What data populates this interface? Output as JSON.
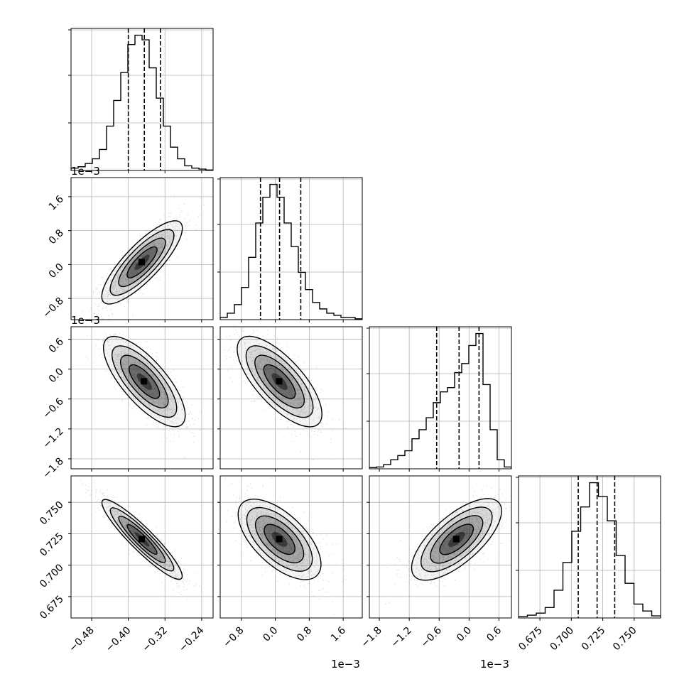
{
  "chart_data": {
    "type": "corner",
    "params": [
      {
        "id": "p0",
        "ticks": [
          -0.48,
          -0.4,
          -0.32,
          -0.24
        ],
        "tick_labels": [
          "−0.48",
          "−0.40",
          "−0.32",
          "−0.24"
        ],
        "offset_label": "",
        "range": [
          -0.525,
          -0.215
        ]
      },
      {
        "id": "p1",
        "ticks": [
          -0.8,
          0.0,
          0.8,
          1.6
        ],
        "tick_labels": [
          "−0.8",
          "0.0",
          "0.8",
          "1.6"
        ],
        "offset_label": "1e−3",
        "range": [
          -1.3,
          2.05
        ]
      },
      {
        "id": "p2",
        "ticks": [
          -1.8,
          -1.2,
          -0.6,
          0.0,
          0.6
        ],
        "tick_labels": [
          "−1.8",
          "−1.2",
          "−0.6",
          "0.0",
          "0.6"
        ],
        "offset_label": "1e−3",
        "range": [
          -2.0,
          0.85
        ]
      },
      {
        "id": "p3",
        "ticks": [
          0.675,
          0.7,
          0.725,
          0.75
        ],
        "tick_labels": [
          "0.675",
          "0.700",
          "0.725",
          "0.750"
        ],
        "offset_label": "",
        "range": [
          0.658,
          0.771
        ]
      }
    ],
    "quantiles": [
      [
        -0.4,
        -0.365,
        -0.33
      ],
      [
        -0.35,
        0.1,
        0.6
      ],
      [
        -0.65,
        -0.2,
        0.2
      ],
      [
        0.7055,
        0.7205,
        0.7345
      ]
    ],
    "histograms": [
      [
        0.5,
        0.8,
        1.5,
        2.5,
        4.5,
        9.5,
        15.0,
        21.0,
        27.0,
        29.0,
        28.0,
        22.0,
        15.5,
        9.5,
        5.0,
        2.5,
        1.0,
        0.5,
        0.3,
        0.1
      ],
      [
        0.5,
        1.5,
        3.5,
        7.5,
        14.5,
        22.5,
        28.5,
        31.5,
        28.5,
        22.5,
        17.0,
        11.0,
        7.0,
        4.0,
        2.5,
        1.5,
        1.0,
        0.5,
        0.5,
        0.2
      ],
      [
        0.2,
        0.3,
        0.7,
        1.5,
        2.2,
        3.0,
        5.0,
        6.5,
        8.5,
        11.0,
        12.8,
        13.5,
        16.0,
        17.5,
        20.5,
        22.5,
        14.0,
        6.5,
        1.5,
        0.3
      ],
      [
        0.2,
        0.4,
        0.7,
        1.5,
        4.0,
        8.0,
        12.5,
        16.0,
        19.5,
        17.5,
        14.0,
        9.0,
        5.0,
        2.0,
        1.0,
        0.3
      ]
    ],
    "pairs": [
      {
        "row": 1,
        "col": 0,
        "mean": [
          -0.37,
          0.05
        ],
        "sd": [
          0.04,
          0.45
        ],
        "rho": 0.82
      },
      {
        "row": 2,
        "col": 0,
        "mean": [
          -0.365,
          -0.25
        ],
        "sd": [
          0.04,
          0.42
        ],
        "rho": -0.75
      },
      {
        "row": 2,
        "col": 1,
        "mean": [
          0.1,
          -0.25
        ],
        "sd": [
          0.45,
          0.42
        ],
        "rho": -0.72
      },
      {
        "row": 3,
        "col": 0,
        "mean": [
          -0.37,
          0.7205
        ],
        "sd": [
          0.04,
          0.0145
        ],
        "rho": -0.92
      },
      {
        "row": 3,
        "col": 1,
        "mean": [
          0.1,
          0.7205
        ],
        "sd": [
          0.45,
          0.0145
        ],
        "rho": -0.62
      },
      {
        "row": 3,
        "col": 2,
        "mean": [
          -0.25,
          0.7205
        ],
        "sd": [
          0.42,
          0.0145
        ],
        "rho": 0.7
      }
    ],
    "grid": true
  },
  "icons": {
    "note": "none"
  }
}
